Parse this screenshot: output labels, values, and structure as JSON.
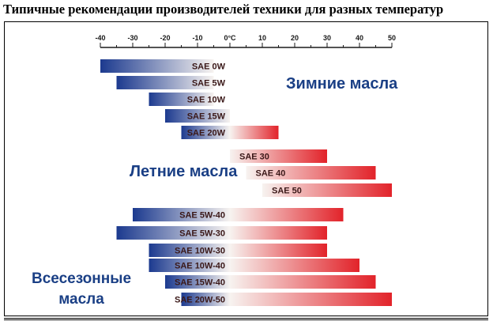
{
  "heading": "Типичные рекомендации производителей техники для разных температур",
  "group_labels": {
    "winter": "Зимние масла",
    "summer": "Летние масла",
    "allseason_line1": "Всесезонные",
    "allseason_line2": "масла"
  },
  "colors": {
    "cold": "#1c3a8f",
    "warm": "#e2232a",
    "neutral": "#f7f3f0",
    "label_text": "#1a3f85"
  },
  "chart_data": {
    "type": "bar",
    "orientation": "horizontal-range",
    "xunit": "°C",
    "xlim": [
      -40,
      50
    ],
    "ticks": [
      {
        "value": -40,
        "label": "-40"
      },
      {
        "value": -30,
        "label": "-30"
      },
      {
        "value": -20,
        "label": "-20"
      },
      {
        "value": -10,
        "label": "-10"
      },
      {
        "value": 0,
        "label": "0°C"
      },
      {
        "value": 10,
        "label": "10"
      },
      {
        "value": 20,
        "label": "20"
      },
      {
        "value": 30,
        "label": "30"
      },
      {
        "value": 40,
        "label": "40"
      },
      {
        "value": 50,
        "label": "50"
      }
    ],
    "bars": [
      {
        "label": "SAE 0W",
        "from": -40,
        "to": -5
      },
      {
        "label": "SAE 5W",
        "from": -35,
        "to": -5
      },
      {
        "label": "SAE 10W",
        "from": -25,
        "to": -5
      },
      {
        "label": "SAE 15W",
        "from": -20,
        "to": 0
      },
      {
        "label": "SAE 20W",
        "from": -15,
        "to": 15
      },
      {
        "label": "SAE 30",
        "from": 0,
        "to": 30
      },
      {
        "label": "SAE 40",
        "from": 5,
        "to": 45
      },
      {
        "label": "SAE 50",
        "from": 10,
        "to": 50
      },
      {
        "label": "SAE 5W-40",
        "from": -30,
        "to": 35
      },
      {
        "label": "SAE 5W-30",
        "from": -35,
        "to": 30
      },
      {
        "label": "SAE 10W-30",
        "from": -25,
        "to": 30
      },
      {
        "label": "SAE 10W-40",
        "from": -25,
        "to": 40
      },
      {
        "label": "SAE 15W-40",
        "from": -20,
        "to": 45
      },
      {
        "label": "SAE 20W-50",
        "from": -15,
        "to": 50
      }
    ]
  }
}
